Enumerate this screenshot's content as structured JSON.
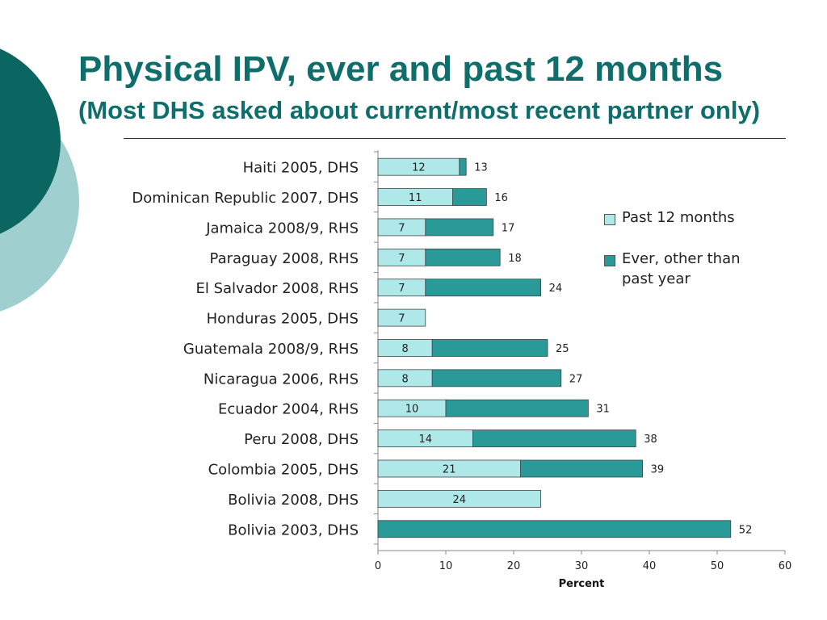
{
  "slide": {
    "title": "Physical IPV, ever and past 12 months",
    "subtitle": "(Most DHS asked about current/most recent partner only)",
    "colors": {
      "title": "#0f6e6b",
      "circle_dark": "#0b6560",
      "circle_light": "#9fcfcf"
    }
  },
  "chart_data": {
    "type": "bar",
    "orientation": "horizontal",
    "stacked": true,
    "categories": [
      "Haiti 2005, DHS",
      "Dominican Republic 2007, DHS",
      "Jamaica 2008/9, RHS",
      "Paraguay 2008, RHS",
      "El Salvador 2008, RHS",
      "Honduras 2005, DHS",
      "Guatemala 2008/9, RHS",
      "Nicaragua 2006, RHS",
      "Ecuador 2004, RHS",
      "Peru 2008, DHS",
      "Colombia 2005, DHS",
      "Bolivia 2008, DHS",
      "Bolivia 2003, DHS"
    ],
    "series": [
      {
        "name": "Past 12 months",
        "color": "#aee8e8",
        "values": [
          12,
          11,
          7,
          7,
          7,
          7,
          8,
          8,
          10,
          14,
          21,
          24,
          null
        ],
        "labels": [
          "12",
          "11",
          "7",
          "7",
          "7",
          "7",
          "8",
          "8",
          "10",
          "14",
          "21",
          "24",
          ""
        ]
      },
      {
        "name": "Ever, other than past year",
        "color": "#2a9a98",
        "values": [
          1,
          5,
          10,
          11,
          17,
          null,
          17,
          19,
          21,
          24,
          18,
          null,
          52
        ]
      }
    ],
    "total_labels": [
      "13",
      "16",
      "17",
      "18",
      "24",
      "",
      "25",
      "27",
      "31",
      "38",
      "39",
      "",
      "52"
    ],
    "xlabel": "Percent",
    "xlim": [
      0,
      60
    ],
    "xticks": [
      0,
      10,
      20,
      30,
      40,
      50,
      60
    ],
    "grid": false,
    "legend_position": "right"
  }
}
